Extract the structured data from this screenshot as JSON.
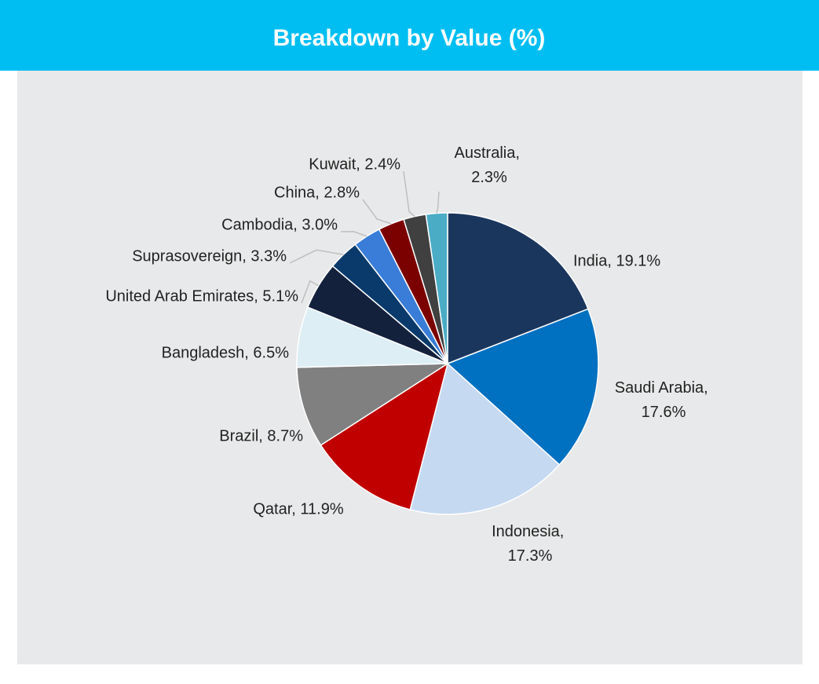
{
  "chart_data": {
    "type": "pie",
    "title": "Breakdown by Value (%)",
    "categories": [
      "India",
      "Saudi Arabia",
      "Indonesia",
      "Qatar",
      "Brazil",
      "Bangladesh",
      "United Arab Emirates",
      "Suprasovereign",
      "Cambodia",
      "China",
      "Kuwait",
      "Australia"
    ],
    "values": [
      19.1,
      17.6,
      17.3,
      11.9,
      8.7,
      6.5,
      5.1,
      3.3,
      3.0,
      2.8,
      2.4,
      2.3
    ],
    "value_labels": [
      "India, 19.1%",
      "Saudi Arabia, 17.6%",
      "Indonesia, 17.3%",
      "Qatar, 11.9%",
      "Brazil, 8.7%",
      "Bangladesh, 6.5%",
      "United Arab Emirates, 5.1%",
      "Suprasovereign, 3.3%",
      "Cambodia, 3.0%",
      "China, 2.8%",
      "Kuwait, 2.4%",
      "Australia, 2.3%"
    ],
    "colors": [
      "#1b365d",
      "#0070c0",
      "#c5d9f1",
      "#c00000",
      "#808080",
      "#ddeef5",
      "#14213d",
      "#0a3a6b",
      "#3a7dd8",
      "#7b0000",
      "#404040",
      "#4bacc6"
    ]
  }
}
